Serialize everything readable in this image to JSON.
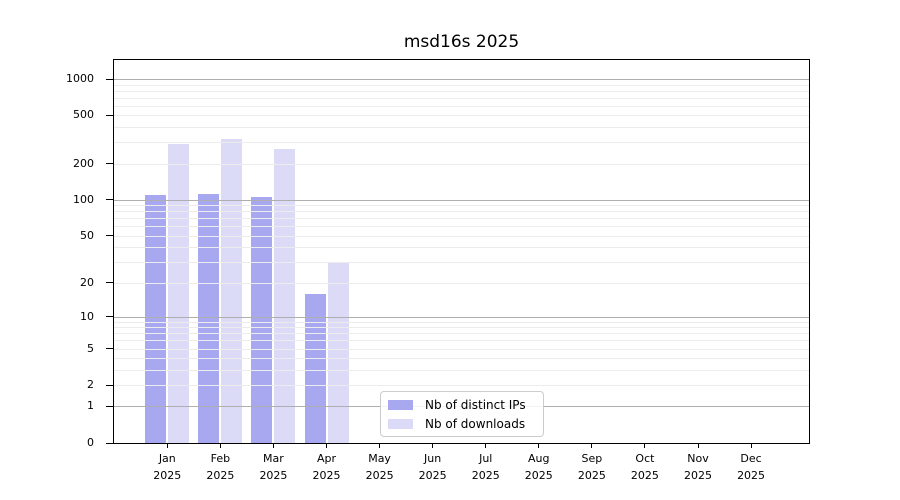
{
  "title": "msd16s 2025",
  "chart_data": {
    "type": "bar",
    "title": "msd16s 2025",
    "year": "2025",
    "categories": [
      "Jan",
      "Feb",
      "Mar",
      "Apr",
      "May",
      "Jun",
      "Jul",
      "Aug",
      "Sep",
      "Oct",
      "Nov",
      "Dec"
    ],
    "series": [
      {
        "name": "Nb of distinct IPs",
        "color": "#a8a8f0",
        "values": [
          110,
          112,
          105,
          16,
          0,
          0,
          0,
          0,
          0,
          0,
          0,
          0
        ]
      },
      {
        "name": "Nb of downloads",
        "color": "#dbdbf8",
        "values": [
          293,
          318,
          263,
          30,
          0,
          0,
          0,
          0,
          0,
          0,
          0,
          0
        ]
      }
    ],
    "y_ticks": [
      0,
      1,
      2,
      5,
      10,
      20,
      50,
      100,
      200,
      500,
      1000
    ],
    "y_major_gridlines": [
      1,
      10,
      100,
      1000
    ],
    "y_scale": "log1p",
    "ylim": [
      0,
      1400
    ],
    "xlabel": "",
    "ylabel": "",
    "grid": true,
    "legend_position": "lower center",
    "colors": {
      "major_grid": "#aeaeae",
      "minor_grid": "#ececec",
      "axis": "#000000",
      "background": "#ffffff"
    }
  }
}
